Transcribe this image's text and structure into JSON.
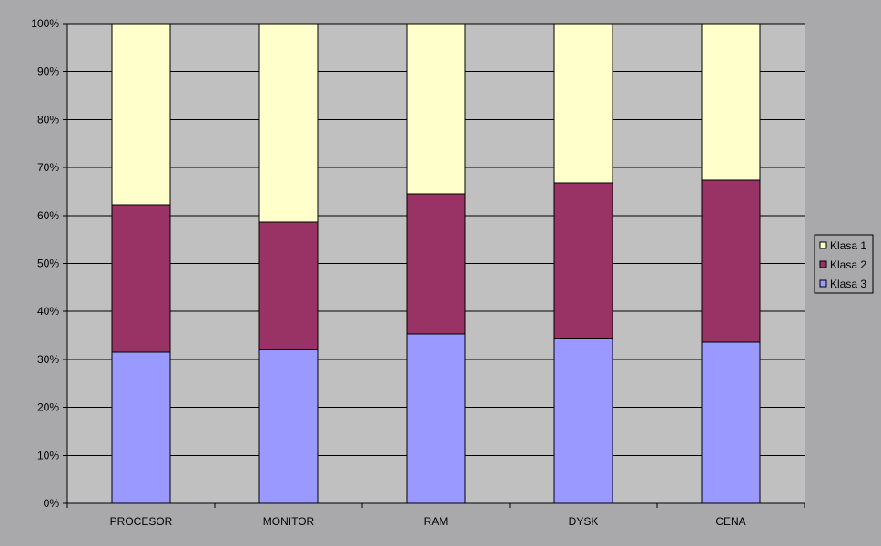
{
  "chart_data": {
    "type": "bar",
    "stacked": "percent",
    "categories": [
      "PROCESOR",
      "MONITOR",
      "RAM",
      "DYSK",
      "CENA"
    ],
    "series": [
      {
        "name": "Klasa 3",
        "values": [
          31.5,
          32.0,
          35.3,
          34.4,
          33.6
        ],
        "color": "#9999ff"
      },
      {
        "name": "Klasa 2",
        "values": [
          30.7,
          26.6,
          29.2,
          32.4,
          33.8
        ],
        "color": "#993366"
      },
      {
        "name": "Klasa 1",
        "values": [
          37.8,
          41.4,
          35.5,
          33.2,
          32.6
        ],
        "color": "#ffffcc"
      }
    ],
    "legend_order": [
      "Klasa 1",
      "Klasa 2",
      "Klasa 3"
    ],
    "y_ticks": [
      "0%",
      "10%",
      "20%",
      "30%",
      "40%",
      "50%",
      "60%",
      "70%",
      "80%",
      "90%",
      "100%"
    ],
    "ylim": [
      0,
      100
    ],
    "grid": true,
    "legend_position": "right",
    "title": "",
    "xlabel": "",
    "ylabel": "",
    "plot_background": "#c0c0c0",
    "page_background": "#a9a9ab"
  }
}
